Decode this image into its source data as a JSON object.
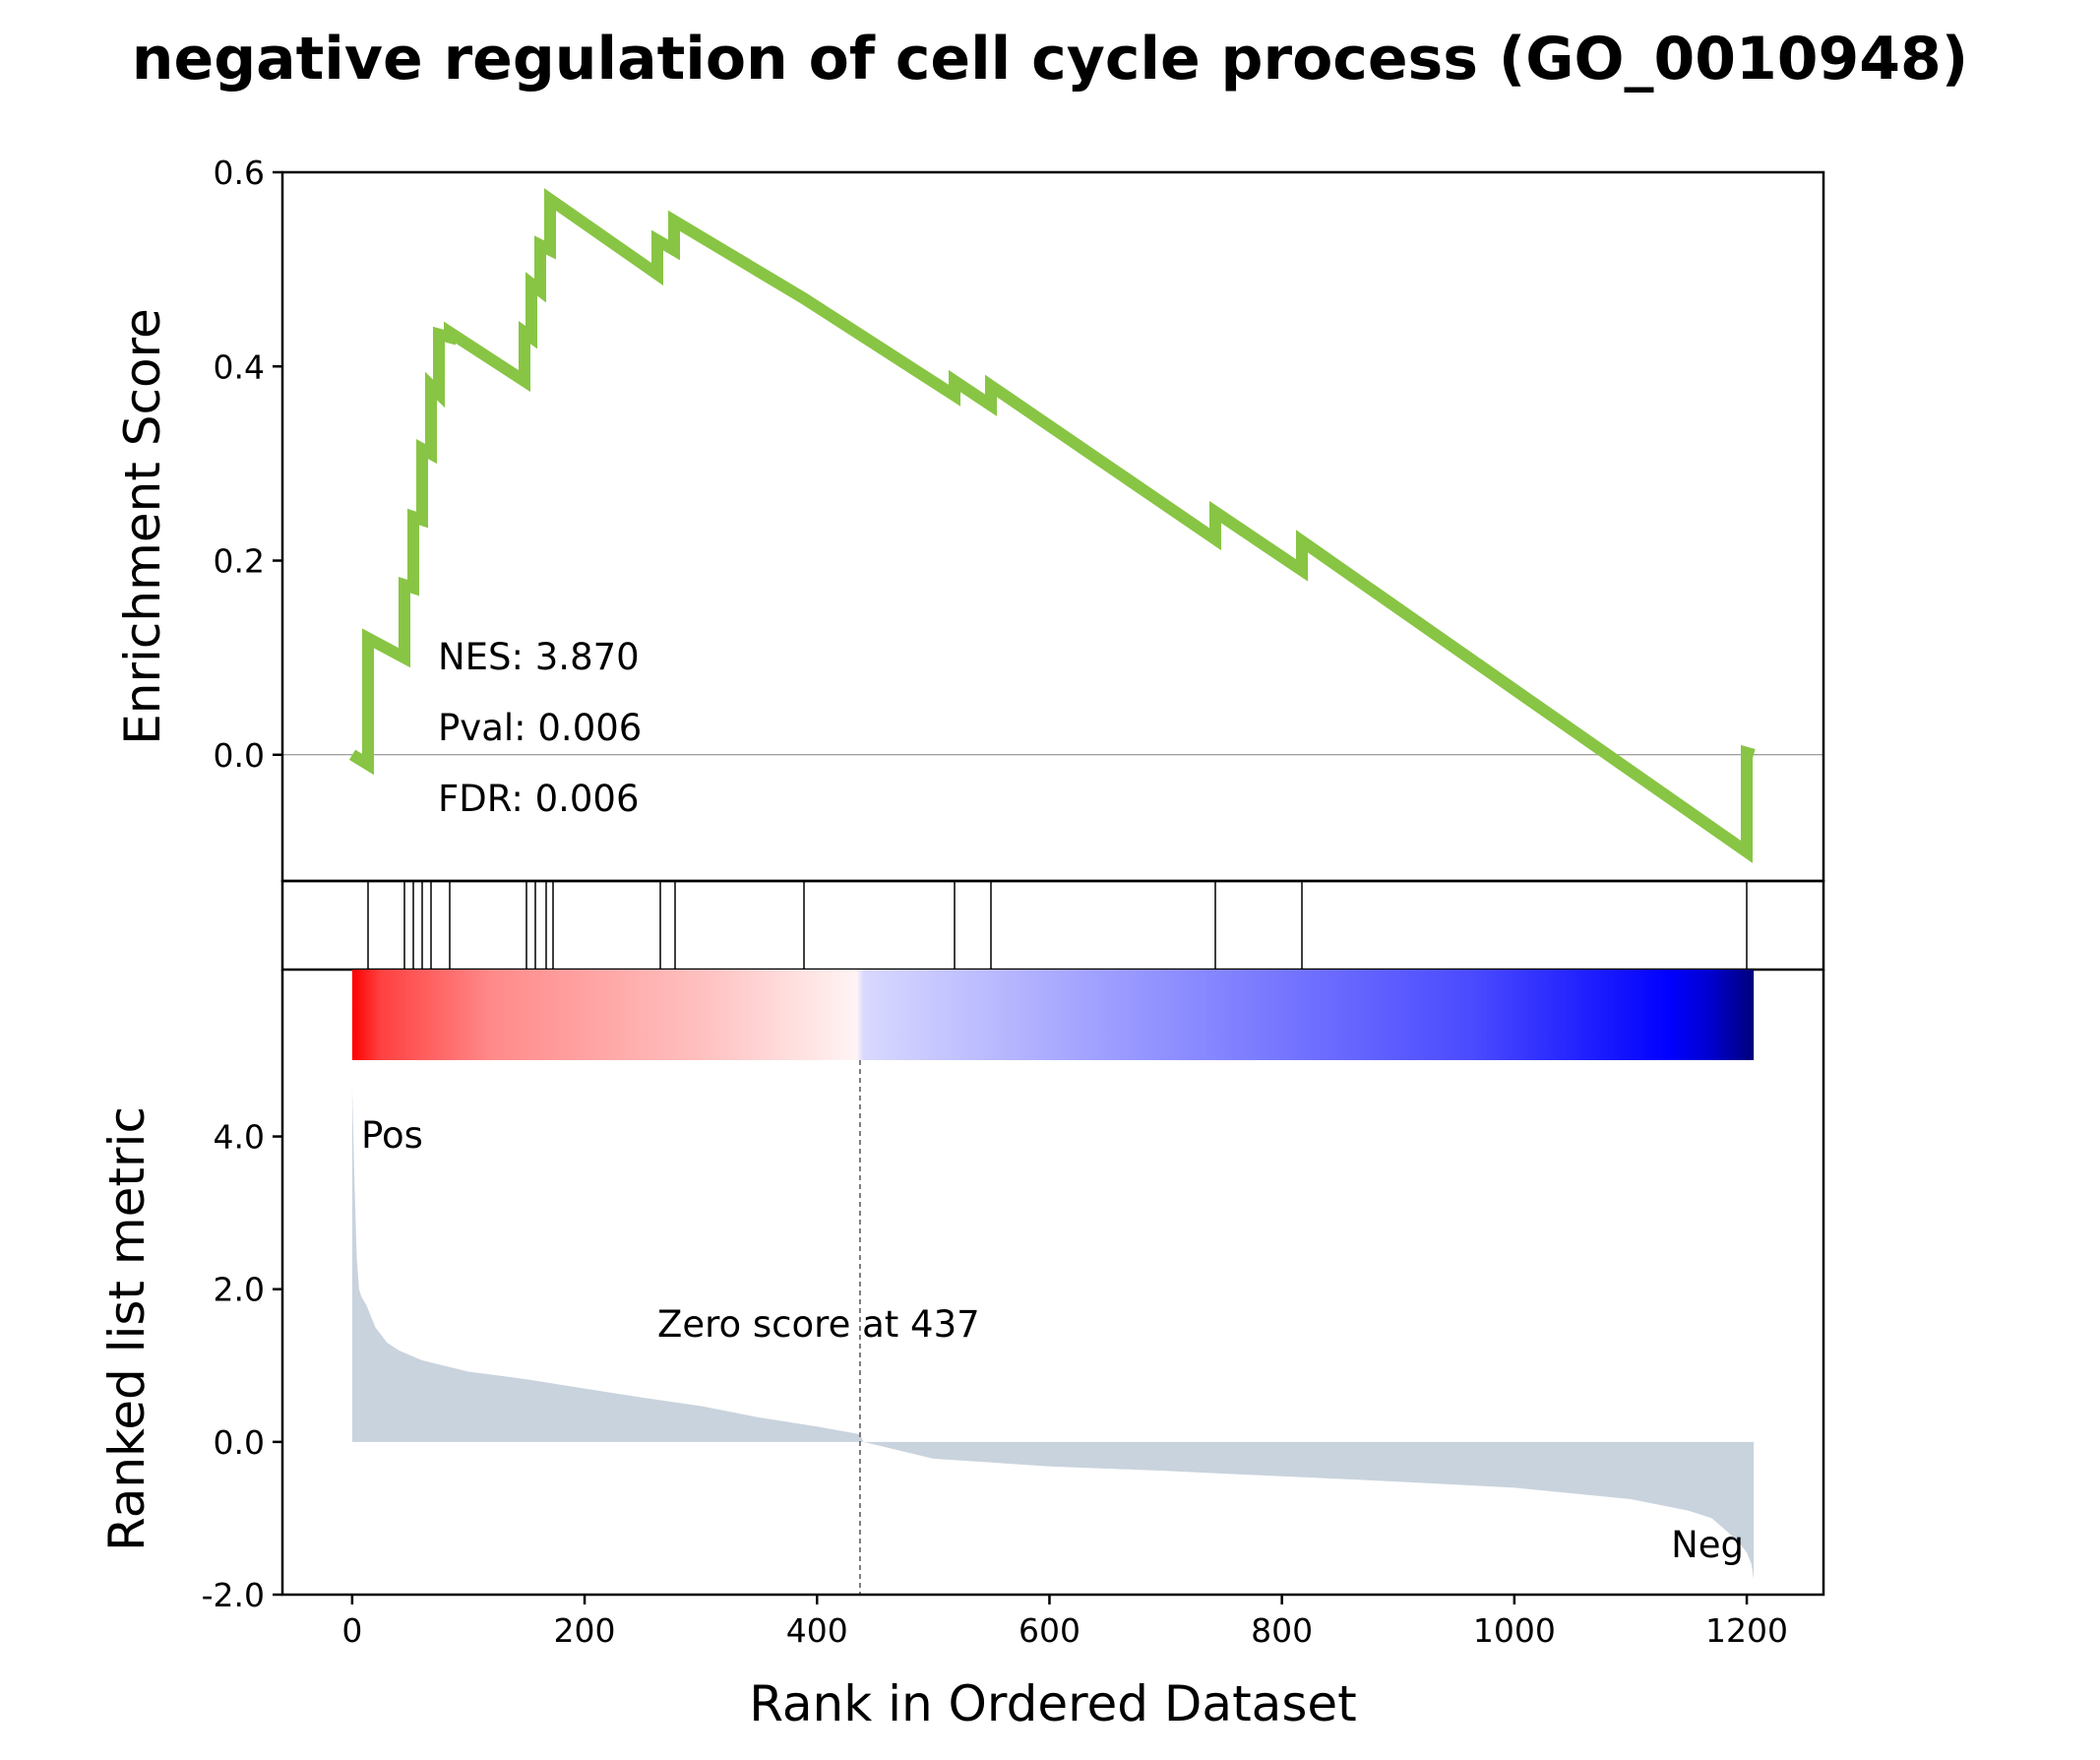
{
  "colors": {
    "es_line": "#88c544",
    "hit_line": "#000000",
    "metric_fill": "#c9d3dd",
    "pos_label": "#ff0000",
    "neg_label": "#0000ff",
    "zero_line": "#808080"
  },
  "chart_data": {
    "type": "line",
    "title": "negative regulation of cell cycle process (GO_0010948)",
    "xlabel": "Rank in Ordered Dataset",
    "xlim": [
      -60,
      1266
    ],
    "xticks": [
      0,
      200,
      400,
      600,
      800,
      1000,
      1200
    ],
    "xtick_labels": [
      "0",
      "200",
      "400",
      "600",
      "800",
      "1000",
      "1200"
    ],
    "enrichment": {
      "ylabel": "Enrichment Score",
      "ylim": [
        -0.13,
        0.6
      ],
      "yticks": [
        0.0,
        0.2,
        0.4,
        0.6
      ],
      "ytick_labels": [
        "0.0",
        "0.2",
        "0.4",
        "0.6"
      ],
      "stats": {
        "nes": "NES: 3.870",
        "pval": "Pval: 0.006",
        "fdr": "FDR: 0.006"
      },
      "x": [
        0,
        14,
        14,
        45,
        45,
        53,
        53,
        60,
        60,
        68,
        68,
        75,
        75,
        84,
        84,
        148,
        148,
        154,
        154,
        162,
        162,
        170,
        170,
        263,
        263,
        277,
        277,
        389,
        389,
        518,
        518,
        550,
        550,
        743,
        743,
        817,
        817,
        1200,
        1200,
        1206
      ],
      "y": [
        0.0,
        -0.01,
        0.12,
        0.1,
        0.175,
        0.172,
        0.245,
        0.242,
        0.315,
        0.31,
        0.38,
        0.372,
        0.433,
        0.43,
        0.435,
        0.385,
        0.435,
        0.43,
        0.485,
        0.478,
        0.525,
        0.52,
        0.572,
        0.495,
        0.53,
        0.52,
        0.55,
        0.47,
        0.47,
        0.37,
        0.385,
        0.36,
        0.38,
        0.222,
        0.25,
        0.19,
        0.22,
        -0.1,
        0.002,
        0.0
      ]
    },
    "hits": {
      "positions": [
        14,
        45,
        53,
        60,
        68,
        84,
        150,
        158,
        167,
        173,
        265,
        278,
        389,
        518,
        550,
        743,
        817,
        1200
      ]
    },
    "ranked_metric": {
      "ylabel": "Ranked list metric",
      "ylim": [
        -2.0,
        5.0
      ],
      "yticks": [
        -2.0,
        0.0,
        2.0,
        4.0
      ],
      "ytick_labels": [
        "-2.0",
        "0.0",
        "2.0",
        "4.0"
      ],
      "zero_score_label": "Zero score at 437",
      "zero_score_rank": 437,
      "pos_label": "Pos",
      "neg_label": "Neg",
      "x": [
        0,
        2,
        4,
        6,
        8,
        12,
        16,
        20,
        30,
        40,
        60,
        100,
        150,
        200,
        250,
        300,
        350,
        400,
        437,
        440,
        500,
        600,
        700,
        800,
        900,
        1000,
        1100,
        1150,
        1170,
        1185,
        1195,
        1200,
        1204,
        1206
      ],
      "y": [
        4.65,
        3.4,
        2.4,
        2.0,
        1.9,
        1.8,
        1.65,
        1.5,
        1.3,
        1.2,
        1.07,
        0.92,
        0.82,
        0.7,
        0.58,
        0.47,
        0.32,
        0.2,
        0.1,
        0.0,
        -0.22,
        -0.32,
        -0.38,
        -0.45,
        -0.52,
        -0.6,
        -0.75,
        -0.9,
        -1.0,
        -1.2,
        -1.35,
        -1.45,
        -1.6,
        -1.8
      ]
    },
    "colorbar": {
      "stops": [
        {
          "offset": 0.0,
          "color": "#ff0000"
        },
        {
          "offset": 0.02,
          "color": "#ff4040"
        },
        {
          "offset": 0.1,
          "color": "#ff8a8a"
        },
        {
          "offset": 0.25,
          "color": "#ffc0c0"
        },
        {
          "offset": 0.36,
          "color": "#fff4f4"
        },
        {
          "offset": 0.365,
          "color": "#d8d8ff"
        },
        {
          "offset": 0.55,
          "color": "#9a9aff"
        },
        {
          "offset": 0.8,
          "color": "#4a4aff"
        },
        {
          "offset": 0.94,
          "color": "#0000ff"
        },
        {
          "offset": 0.97,
          "color": "#0000cc"
        },
        {
          "offset": 1.0,
          "color": "#00007a"
        }
      ]
    }
  }
}
